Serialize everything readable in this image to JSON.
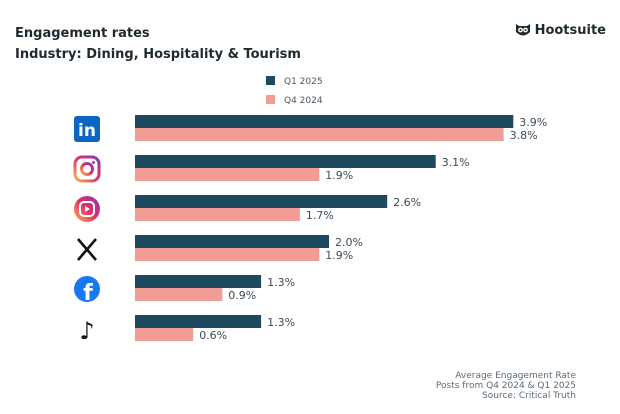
{
  "header": {
    "title": "Engagement rates",
    "subtitle": "Industry: Dining, Hospitality & Tourism",
    "logo_text": "Hootsuite"
  },
  "footer": {
    "lines": [
      "Average Engagement Rate",
      "Posts from Q4 2024 & Q1 2025",
      "Source: Critical Truth"
    ]
  },
  "chart_data": {
    "type": "bar",
    "orientation": "horizontal",
    "categories": [
      "LinkedIn",
      "Instagram",
      "Instagram Reels",
      "X",
      "Facebook",
      "TikTok"
    ],
    "category_icons": [
      "linkedin-icon",
      "instagram-icon",
      "instagram-reels-icon",
      "x-icon",
      "facebook-icon",
      "tiktok-icon"
    ],
    "series": [
      {
        "name": "Q1 2025",
        "color": "#1d4a5e",
        "values": [
          3.9,
          3.1,
          2.6,
          2.0,
          1.3,
          1.3
        ]
      },
      {
        "name": "Q4 2024",
        "color": "#f19c94",
        "values": [
          3.8,
          1.9,
          1.7,
          1.9,
          0.9,
          0.6
        ]
      }
    ],
    "value_suffix": "%",
    "legend": "top-center",
    "grid": false
  }
}
